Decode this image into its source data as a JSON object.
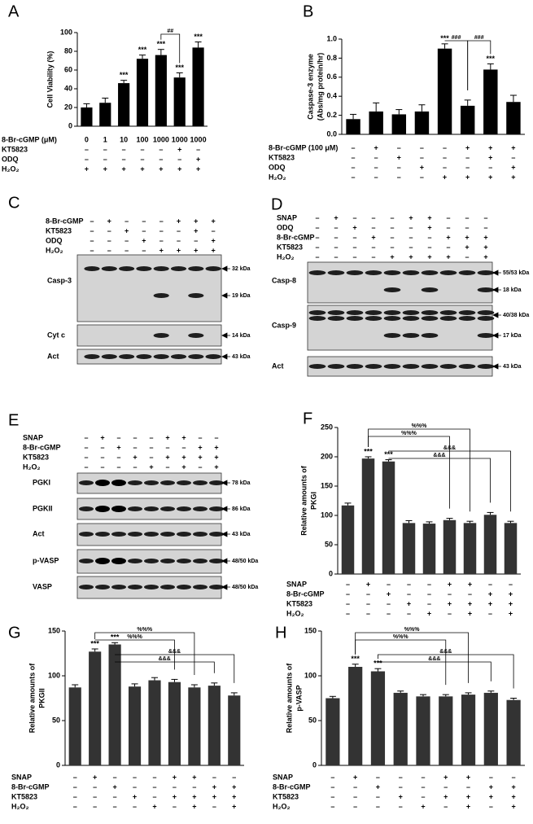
{
  "chart_data": [
    {
      "type": "bar",
      "panel": "A",
      "ylabel": [
        "Cell Viability (%)"
      ],
      "color": "#000000",
      "values": [
        20,
        25,
        46,
        72,
        76,
        52,
        84
      ],
      "errors": [
        4,
        5,
        3,
        4,
        6,
        5,
        6
      ],
      "annotations": [
        null,
        null,
        "***",
        "***",
        "***",
        "***",
        "***"
      ],
      "brackets": [
        "##"
      ],
      "ylim": [
        0,
        100
      ],
      "yticks": [
        0,
        20,
        40,
        60,
        80,
        100
      ],
      "conditions": [
        {
          "name": "8-Br-cGMP (μM)",
          "marks": [
            "0",
            "1",
            "10",
            "100",
            "1000",
            "1000",
            "1000"
          ]
        },
        {
          "name": "KT5823",
          "marks": [
            "–",
            "–",
            "–",
            "–",
            "–",
            "+",
            "–"
          ]
        },
        {
          "name": "ODQ",
          "marks": [
            "–",
            "–",
            "–",
            "–",
            "–",
            "–",
            "+"
          ]
        },
        {
          "name": "H₂O₂",
          "marks": [
            "+",
            "+",
            "+",
            "+",
            "+",
            "+",
            "+"
          ]
        }
      ]
    },
    {
      "type": "bar",
      "panel": "B",
      "ylabel": [
        "Caspase-3 enzyme",
        "(Abs/mg protein/hr)"
      ],
      "color": "#000000",
      "values": [
        0.16,
        0.24,
        0.21,
        0.24,
        0.9,
        0.3,
        0.68,
        0.34
      ],
      "errors": [
        0.05,
        0.09,
        0.05,
        0.07,
        0.05,
        0.06,
        0.06,
        0.07
      ],
      "annotations": [
        null,
        null,
        null,
        null,
        "***",
        null,
        "***",
        null
      ],
      "brackets": [
        "###",
        "###"
      ],
      "ylim": [
        0,
        1.0
      ],
      "yticks": [
        {
          "value": 0,
          "label": "0.0"
        },
        {
          "value": 0.2,
          "label": "0.2"
        },
        {
          "value": 0.4,
          "label": "0.4"
        },
        {
          "value": 0.6,
          "label": "0.6"
        },
        {
          "value": 0.8,
          "label": "0.8"
        },
        {
          "value": 1.0,
          "label": "1.0"
        }
      ],
      "conditions": [
        {
          "name": "8-Br-cGMP (100 μM)",
          "marks": [
            "–",
            "+",
            "–",
            "–",
            "–",
            "+",
            "+",
            "+"
          ]
        },
        {
          "name": "KT5823",
          "marks": [
            "–",
            "–",
            "+",
            "–",
            "–",
            "–",
            "+",
            "–"
          ]
        },
        {
          "name": "ODQ",
          "marks": [
            "–",
            "–",
            "–",
            "+",
            "–",
            "–",
            "–",
            "+"
          ]
        },
        {
          "name": "H₂O₂",
          "marks": [
            "–",
            "–",
            "–",
            "–",
            "+",
            "+",
            "+",
            "+"
          ]
        }
      ]
    },
    {
      "type": "bar",
      "panel": "F",
      "ylabel": [
        "Relative amounts of",
        "PKGI"
      ],
      "color": "#333333",
      "values": [
        117,
        197,
        192,
        87,
        86,
        92,
        87,
        101,
        87
      ],
      "errors": [
        4,
        3,
        3,
        4,
        3,
        3,
        3,
        4,
        3
      ],
      "annotations": [
        null,
        "***",
        "***",
        null,
        null,
        null,
        null,
        null,
        null
      ],
      "brackets": [
        "%%%",
        "%%%",
        "&&&",
        "&&&"
      ],
      "ylim": [
        0,
        250
      ],
      "yticks": [
        0,
        50,
        100,
        150,
        200,
        250
      ],
      "conditions": [
        {
          "name": "SNAP",
          "marks": [
            "–",
            "+",
            "–",
            "–",
            "–",
            "+",
            "+",
            "–",
            "–"
          ]
        },
        {
          "name": "8-Br-cGMP",
          "marks": [
            "–",
            "–",
            "+",
            "–",
            "–",
            "–",
            "–",
            "+",
            "+"
          ]
        },
        {
          "name": "KT5823",
          "marks": [
            "–",
            "–",
            "–",
            "+",
            "–",
            "+",
            "+",
            "+",
            "+"
          ]
        },
        {
          "name": "H₂O₂",
          "marks": [
            "–",
            "–",
            "–",
            "–",
            "+",
            "–",
            "+",
            "–",
            "+"
          ]
        }
      ]
    },
    {
      "type": "bar",
      "panel": "G",
      "ylabel": [
        "Relative amounts of",
        "PKGII"
      ],
      "color": "#333333",
      "values": [
        87,
        127,
        135,
        88,
        95,
        93,
        87,
        89,
        78
      ],
      "errors": [
        3,
        3,
        2,
        3,
        3,
        3,
        3,
        3,
        3
      ],
      "annotations": [
        null,
        "***",
        "***",
        null,
        null,
        null,
        null,
        null,
        null
      ],
      "brackets": [
        "%%%",
        "%%%",
        "&&&",
        "&&&"
      ],
      "ylim": [
        0,
        150
      ],
      "yticks": [
        0,
        50,
        100,
        150
      ],
      "conditions": [
        {
          "name": "SNAP",
          "marks": [
            "–",
            "+",
            "–",
            "–",
            "–",
            "+",
            "+",
            "–",
            "–"
          ]
        },
        {
          "name": "8-Br-cGMP",
          "marks": [
            "–",
            "–",
            "+",
            "–",
            "–",
            "–",
            "–",
            "+",
            "+"
          ]
        },
        {
          "name": "KT5823",
          "marks": [
            "–",
            "–",
            "–",
            "+",
            "–",
            "+",
            "+",
            "+",
            "+"
          ]
        },
        {
          "name": "H₂O₂",
          "marks": [
            "–",
            "–",
            "–",
            "–",
            "+",
            "–",
            "+",
            "–",
            "+"
          ]
        }
      ]
    },
    {
      "type": "bar",
      "panel": "H",
      "ylabel": [
        "Relative amounts of",
        "p-VASP"
      ],
      "color": "#333333",
      "values": [
        75,
        110,
        105,
        81,
        77,
        77,
        79,
        81,
        73
      ],
      "errors": [
        2,
        3,
        3,
        2,
        2,
        2,
        2,
        2,
        2
      ],
      "annotations": [
        null,
        "***",
        "***",
        null,
        null,
        null,
        null,
        null,
        null
      ],
      "brackets": [
        "%%%",
        "%%%",
        "&&&",
        "&&&"
      ],
      "ylim": [
        0,
        150
      ],
      "yticks": [
        0,
        50,
        100,
        150
      ],
      "conditions": [
        {
          "name": "SNAP",
          "marks": [
            "–",
            "+",
            "–",
            "–",
            "–",
            "+",
            "+",
            "–",
            "–"
          ]
        },
        {
          "name": "8-Br-cGMP",
          "marks": [
            "–",
            "–",
            "+",
            "–",
            "–",
            "–",
            "–",
            "+",
            "+"
          ]
        },
        {
          "name": "KT5823",
          "marks": [
            "–",
            "–",
            "–",
            "+",
            "–",
            "+",
            "+",
            "+",
            "+"
          ]
        },
        {
          "name": "H₂O₂",
          "marks": [
            "–",
            "–",
            "–",
            "–",
            "+",
            "–",
            "+",
            "–",
            "+"
          ]
        }
      ]
    }
  ],
  "blots": [
    {
      "panel": "C",
      "conditions": [
        {
          "name": "8-Br-cGMP",
          "marks": [
            "–",
            "+",
            "–",
            "–",
            "–",
            "+",
            "+",
            "+"
          ]
        },
        {
          "name": "KT5823",
          "marks": [
            "–",
            "–",
            "+",
            "–",
            "–",
            "–",
            "+",
            "–"
          ]
        },
        {
          "name": "ODQ",
          "marks": [
            "–",
            "–",
            "–",
            "+",
            "–",
            "–",
            "–",
            "+"
          ]
        },
        {
          "name": "H₂O₂",
          "marks": [
            "–",
            "–",
            "–",
            "–",
            "+",
            "+",
            "+",
            "+"
          ]
        }
      ],
      "rows": [
        {
          "name": "Casp-3",
          "sizes": [
            "32 kDa",
            "19 kDa"
          ]
        },
        {
          "name": "Cyt c",
          "sizes": [
            "14 kDa"
          ]
        },
        {
          "name": "Act",
          "sizes": [
            "43 kDa"
          ]
        }
      ]
    },
    {
      "panel": "D",
      "conditions": [
        {
          "name": "SNAP",
          "marks": [
            "–",
            "+",
            "–",
            "–",
            "–",
            "+",
            "+",
            "–",
            "–",
            "–"
          ]
        },
        {
          "name": "ODQ",
          "marks": [
            "–",
            "–",
            "+",
            "–",
            "–",
            "–",
            "+",
            "–",
            "–",
            "–"
          ]
        },
        {
          "name": "8-Br-cGMP",
          "marks": [
            "–",
            "–",
            "–",
            "+",
            "–",
            "–",
            "–",
            "+",
            "+",
            "+"
          ]
        },
        {
          "name": "KT5823",
          "marks": [
            "–",
            "–",
            "–",
            "–",
            "–",
            "–",
            "–",
            "–",
            "+",
            "+"
          ]
        },
        {
          "name": "H₂O₂",
          "marks": [
            "–",
            "–",
            "–",
            "–",
            "+",
            "+",
            "+",
            "+",
            "–",
            "+"
          ]
        }
      ],
      "rows": [
        {
          "name": "Casp-8",
          "sizes": [
            "55/53 kDa",
            "18 kDa"
          ]
        },
        {
          "name": "Casp-9",
          "sizes": [
            "40/38 kDa",
            "17 kDa"
          ]
        },
        {
          "name": "Act",
          "sizes": [
            "43 kDa"
          ]
        }
      ]
    },
    {
      "panel": "E",
      "conditions": [
        {
          "name": "SNAP",
          "marks": [
            "–",
            "+",
            "–",
            "–",
            "–",
            "+",
            "+",
            "–",
            "–"
          ]
        },
        {
          "name": "8-Br-cGMP",
          "marks": [
            "–",
            "–",
            "+",
            "–",
            "–",
            "–",
            "–",
            "+",
            "+"
          ]
        },
        {
          "name": "KT5823",
          "marks": [
            "–",
            "–",
            "–",
            "+",
            "–",
            "+",
            "+",
            "+",
            "+"
          ]
        },
        {
          "name": "H₂O₂",
          "marks": [
            "–",
            "–",
            "–",
            "–",
            "+",
            "–",
            "+",
            "–",
            "+"
          ]
        }
      ],
      "rows": [
        {
          "name": "PGKI",
          "sizes": [
            "78 kDa"
          ]
        },
        {
          "name": "PGKII",
          "sizes": [
            "86 kDa"
          ]
        },
        {
          "name": "Act",
          "sizes": [
            "43 kDa"
          ]
        },
        {
          "name": "p-VASP",
          "sizes": [
            "48/50 kDa"
          ]
        },
        {
          "name": "VASP",
          "sizes": [
            "48/50 kDa"
          ]
        }
      ]
    }
  ]
}
